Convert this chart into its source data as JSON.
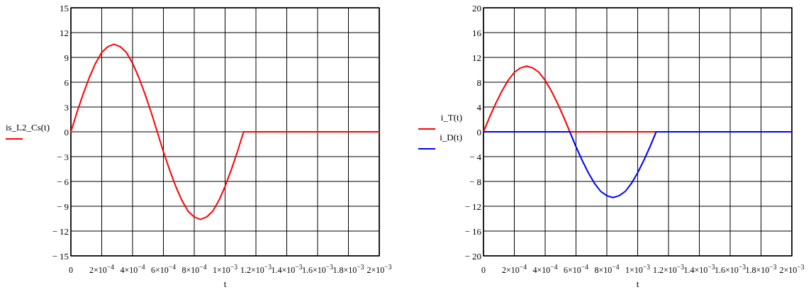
{
  "chart_data": [
    {
      "type": "line",
      "xlabel": "t",
      "legend": "left",
      "grid": true,
      "x": [
        0,
        4e-05,
        8e-05,
        0.00012,
        0.00016,
        0.0002,
        0.00024,
        0.00028,
        0.00032,
        0.00036,
        0.0004,
        0.00044,
        0.00048,
        0.00052,
        0.00056,
        0.0006,
        0.00064,
        0.00068,
        0.00072,
        0.00076,
        0.0008,
        0.00084,
        0.00088,
        0.00092,
        0.00096,
        0.001,
        0.00104,
        0.00108,
        0.00112,
        0.002
      ],
      "series": [
        {
          "name": "is_L2_Cs(t)",
          "color": "#ff0000",
          "values": [
            0,
            2.4,
            4.6,
            6.6,
            8.3,
            9.6,
            10.3,
            10.6,
            10.3,
            9.6,
            8.3,
            6.6,
            4.6,
            2.4,
            0,
            -2.4,
            -4.6,
            -6.6,
            -8.3,
            -9.6,
            -10.3,
            -10.6,
            -10.3,
            -9.6,
            -8.3,
            -6.6,
            -4.6,
            -2.4,
            0,
            0
          ]
        }
      ],
      "xlim": [
        0,
        0.002
      ],
      "xticks": [
        0,
        {
          "value": 0.0002,
          "label": "2×10$^{−4}$"
        },
        {
          "value": 0.0004,
          "label": "4×10$^{−4}$"
        },
        {
          "value": 0.0006,
          "label": "6×10$^{−4}$"
        },
        {
          "value": 0.0008,
          "label": "8×10$^{−4}$"
        },
        {
          "value": 0.001,
          "label": "1×10$^{−3}$"
        },
        {
          "value": 0.0012,
          "label": "1.2×10$^{−3}$"
        },
        {
          "value": 0.0014,
          "label": "1.4×10$^{−3}$"
        },
        {
          "value": 0.0016,
          "label": "1.6×10$^{−3}$"
        },
        {
          "value": 0.0018,
          "label": "1.8×10$^{−3}$"
        },
        {
          "value": 0.002,
          "label": "2×10$^{−3}$"
        }
      ],
      "ylim": [
        -15,
        15
      ],
      "yticks": [
        {
          "value": -15,
          "label": "− 15"
        },
        {
          "value": -12,
          "label": "− 12"
        },
        {
          "value": -9,
          "label": "− 9"
        },
        {
          "value": -6,
          "label": "− 6"
        },
        {
          "value": -3,
          "label": "− 3"
        },
        0,
        3,
        6,
        9,
        12,
        15
      ]
    },
    {
      "type": "line",
      "xlabel": "t",
      "legend": "left",
      "grid": true,
      "x": [
        0,
        4e-05,
        8e-05,
        0.00012,
        0.00016,
        0.0002,
        0.00024,
        0.00028,
        0.00032,
        0.00036,
        0.0004,
        0.00044,
        0.00048,
        0.00052,
        0.00056,
        0.0006,
        0.00064,
        0.00068,
        0.00072,
        0.00076,
        0.0008,
        0.00084,
        0.00088,
        0.00092,
        0.00096,
        0.001,
        0.00104,
        0.00108,
        0.00112,
        0.002
      ],
      "series": [
        {
          "name": "i_T(t)",
          "color": "#ff0000",
          "values": [
            0,
            2.4,
            4.6,
            6.6,
            8.3,
            9.6,
            10.3,
            10.6,
            10.3,
            9.6,
            8.3,
            6.6,
            4.6,
            2.4,
            0,
            0,
            0,
            0,
            0,
            0,
            0,
            0,
            0,
            0,
            0,
            0,
            0,
            0,
            0,
            0
          ]
        },
        {
          "name": "i_D(t)",
          "color": "#0000ff",
          "values": [
            0,
            0,
            0,
            0,
            0,
            0,
            0,
            0,
            0,
            0,
            0,
            0,
            0,
            0,
            0,
            -2.4,
            -4.6,
            -6.6,
            -8.3,
            -9.6,
            -10.3,
            -10.6,
            -10.3,
            -9.6,
            -8.3,
            -6.6,
            -4.6,
            -2.4,
            0,
            0
          ]
        }
      ],
      "xlim": [
        0,
        0.002
      ],
      "xticks": [
        0,
        {
          "value": 0.0002,
          "label": "2×10$^{−4}$"
        },
        {
          "value": 0.0004,
          "label": "4×10$^{−4}$"
        },
        {
          "value": 0.0006,
          "label": "6×10$^{−4}$"
        },
        {
          "value": 0.0008,
          "label": "8×10$^{−4}$"
        },
        {
          "value": 0.001,
          "label": "1×10$^{−3}$"
        },
        {
          "value": 0.0012,
          "label": "1.2×10$^{−3}$"
        },
        {
          "value": 0.0014,
          "label": "1.4×10$^{−3}$"
        },
        {
          "value": 0.0016,
          "label": "1.6×10$^{−3}$"
        },
        {
          "value": 0.0018,
          "label": "1.8×10$^{−3}$"
        },
        {
          "value": 0.002,
          "label": "2×10$^{−3}$"
        }
      ],
      "ylim": [
        -20,
        20
      ],
      "yticks": [
        {
          "value": -20,
          "label": "− 20"
        },
        {
          "value": -16,
          "label": "− 16"
        },
        {
          "value": -12,
          "label": "− 12"
        },
        {
          "value": -8,
          "label": "− 8"
        },
        {
          "value": -4,
          "label": "− 4"
        },
        0,
        4,
        8,
        12,
        16,
        20
      ]
    }
  ]
}
